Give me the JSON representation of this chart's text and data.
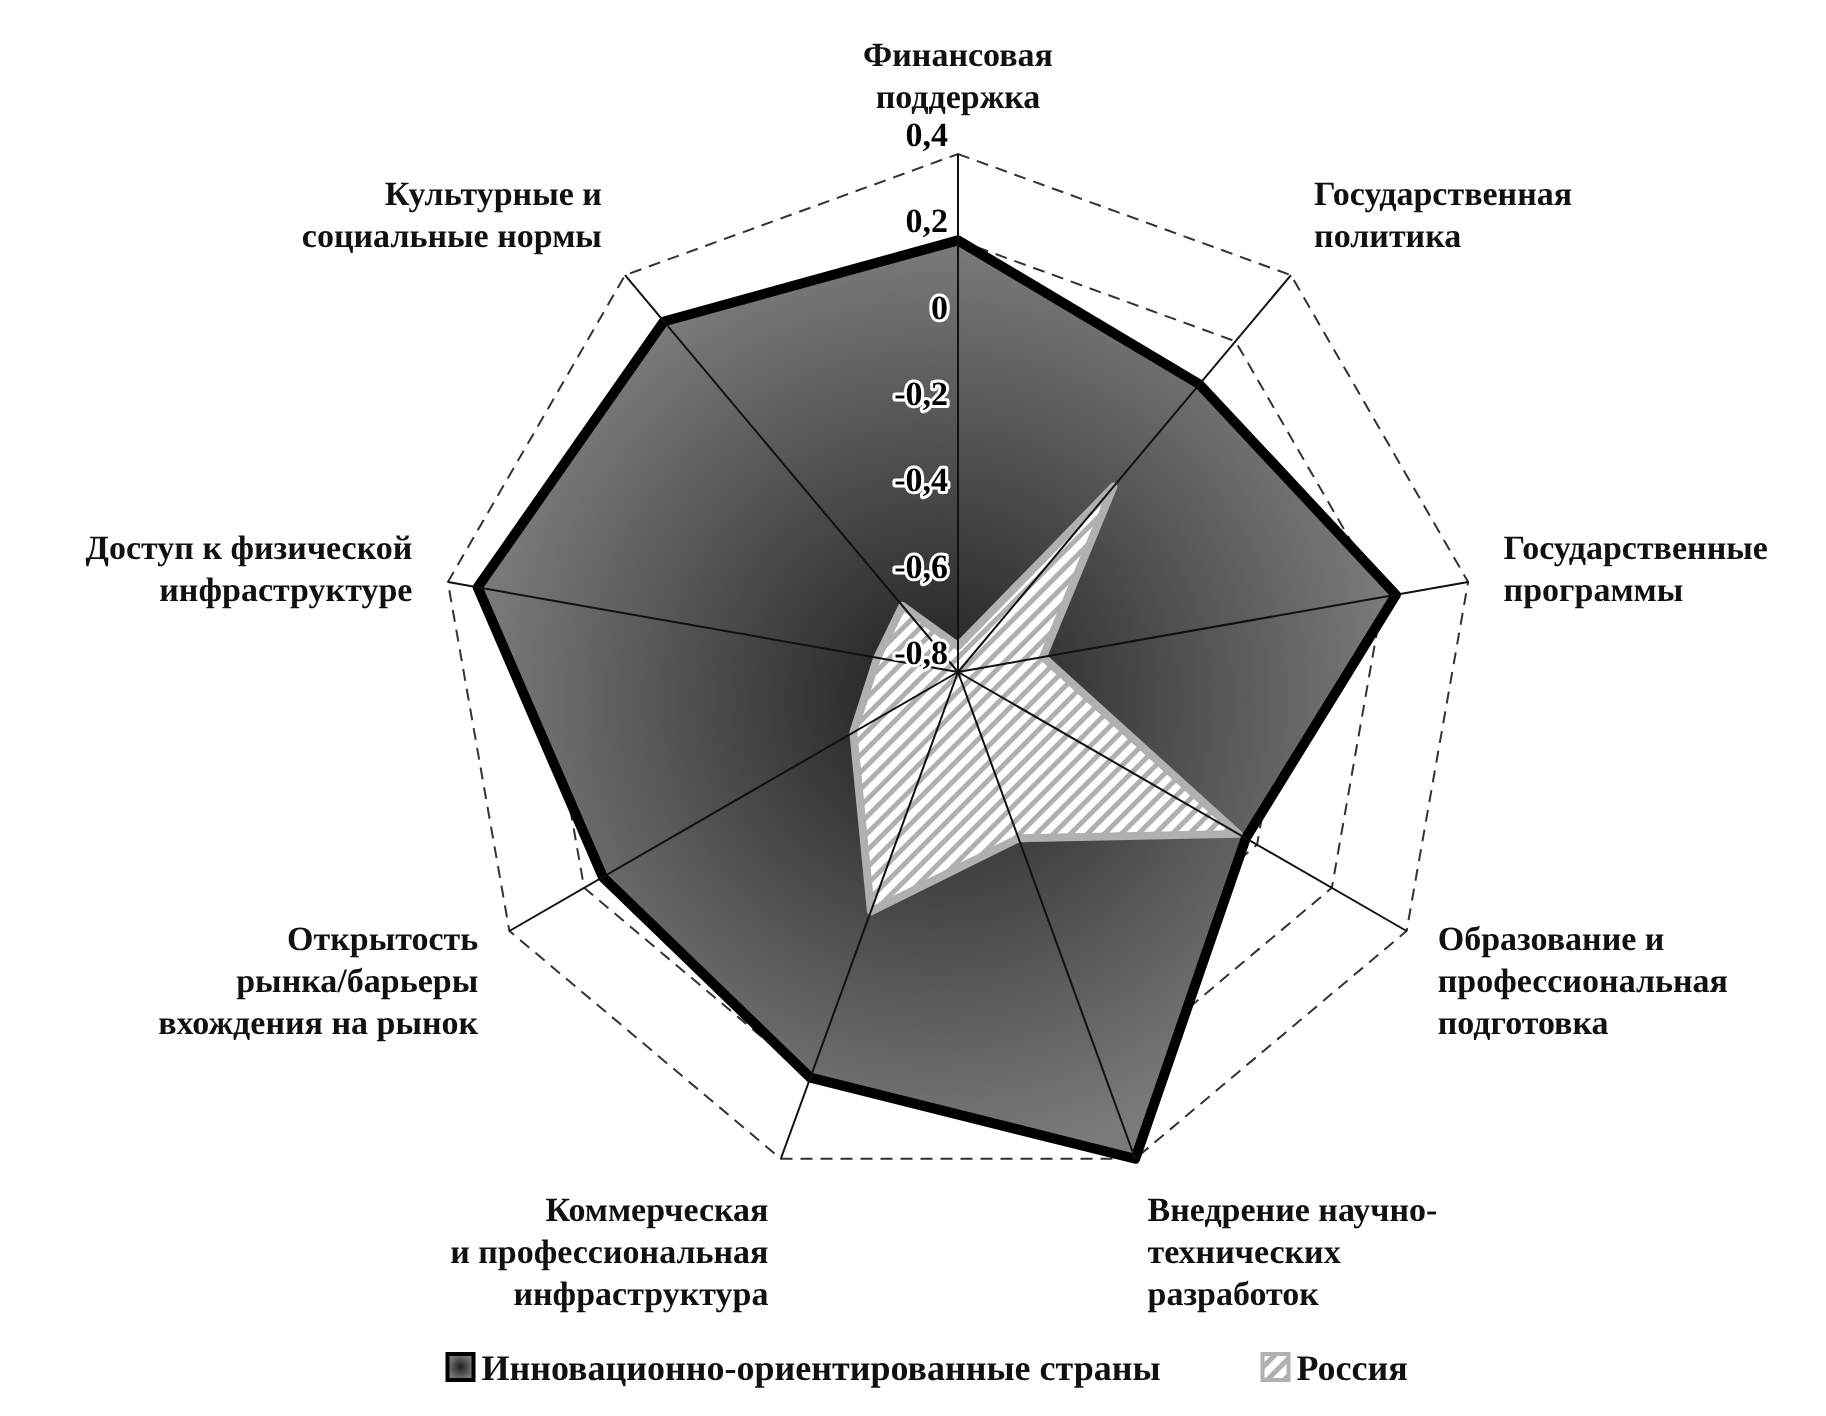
{
  "chart_data": {
    "type": "radar",
    "categories": [
      "Финансовая\nподдержка",
      "Государственная\nполитика",
      "Государственные\nпрограммы",
      "Образование и\nпрофессиональная\nподготовка",
      "Внедрение научно-\nтехнических\nразработок",
      "Коммерческая\nи профессиональная\nинфраструктура",
      "Открытость\nрынка/барьеры\nвхождения на рынок",
      "Доступ к физической\nинфраструктуре",
      "Культурные и\nсоциальные нормы"
    ],
    "series": [
      {
        "name": "Инновационно-ориентированные страны",
        "color": "#000000",
        "values": [
          0.2,
          0.07,
          0.23,
          -0.03,
          0.4,
          0.2,
          0.15,
          0.33,
          0.26
        ]
      },
      {
        "name": "Россия",
        "color": "#b0b0b0",
        "values": [
          -0.74,
          -0.24,
          -0.6,
          -0.05,
          -0.39,
          -0.21,
          -0.52,
          -0.61,
          -0.6
        ]
      }
    ],
    "ylim": [
      -0.8,
      0.4
    ],
    "yticks": [
      {
        "value": -0.8,
        "label": "-0,8"
      },
      {
        "value": -0.6,
        "label": "-0,6"
      },
      {
        "value": -0.4,
        "label": "-0,4"
      },
      {
        "value": -0.2,
        "label": "-0,2"
      },
      0,
      {
        "value": 0.2,
        "label": "0,2"
      },
      {
        "value": 0.4,
        "label": "0,4"
      }
    ],
    "grid": true,
    "legend": "bottom"
  }
}
